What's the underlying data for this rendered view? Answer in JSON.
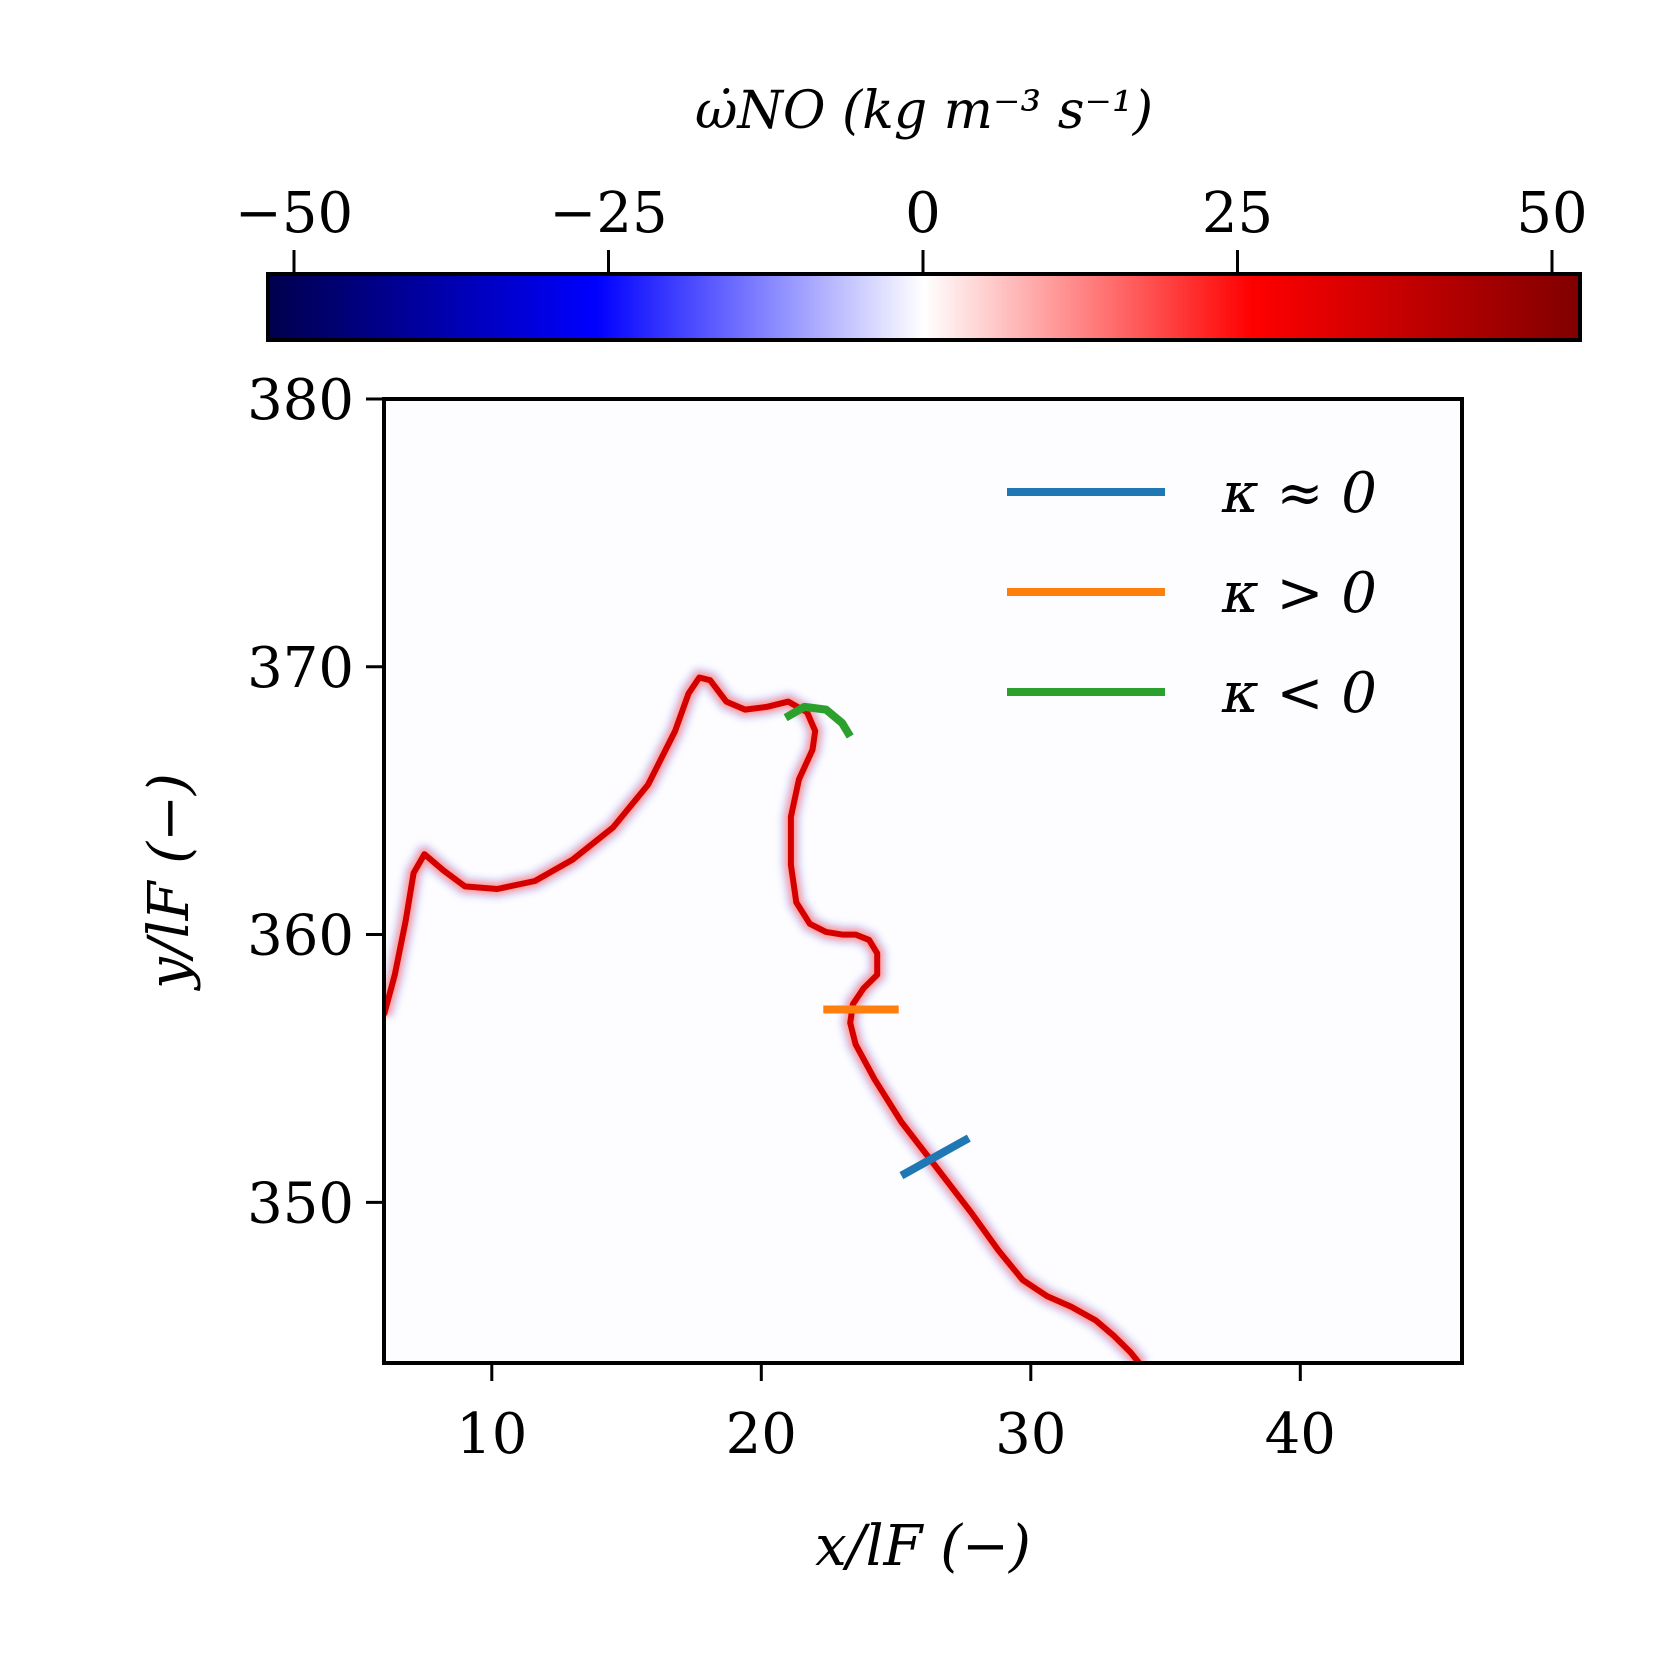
{
  "chart_data": {
    "type": "heatmap",
    "colorbar": {
      "label": "ω̇NO (kg m⁻³ s⁻¹)",
      "range": [
        -50,
        50
      ],
      "ticks": [
        -50,
        -25,
        0,
        25,
        50
      ],
      "tick_labels": [
        "−50",
        "−25",
        "0",
        "25",
        "50"
      ],
      "colormap": "seismic",
      "colors": [
        "#00004d",
        "#0000ff",
        "#ffffff",
        "#ff0000",
        "#800000"
      ]
    },
    "xlabel": "x/lF (−)",
    "ylabel": "y/lF (−)",
    "xlim": [
      6,
      46
    ],
    "ylim": [
      344,
      380
    ],
    "xticks": [
      10,
      20,
      30,
      40
    ],
    "yticks": [
      350,
      360,
      370,
      380
    ],
    "flame_front": {
      "x": [
        6,
        6.4,
        6.8,
        7.1,
        7.5,
        8.2,
        9.0,
        10.2,
        11.6,
        13.0,
        14.5,
        15.8,
        16.8,
        17.3,
        17.7,
        18.1,
        18.7,
        19.4,
        20.2,
        21.0,
        21.7,
        22.0,
        21.9,
        21.4,
        21.1,
        21.1,
        21.3,
        21.8,
        22.4,
        23.0,
        23.5,
        24.0,
        24.3,
        24.3,
        23.8,
        23.4,
        23.3,
        23.5,
        24.2,
        25.2,
        26.5,
        27.8,
        28.8,
        29.7,
        30.6,
        31.5,
        32.4,
        33.1,
        33.7,
        34.1
      ],
      "y": [
        357,
        358.5,
        360.5,
        362.3,
        363.0,
        362.4,
        361.8,
        361.7,
        362.0,
        362.8,
        364.0,
        365.6,
        367.6,
        369.0,
        369.6,
        369.5,
        368.7,
        368.4,
        368.5,
        368.7,
        368.3,
        367.6,
        366.9,
        365.8,
        364.4,
        362.6,
        361.2,
        360.4,
        360.1,
        360.0,
        360.0,
        359.8,
        359.3,
        358.5,
        358.0,
        357.4,
        356.7,
        355.9,
        354.6,
        353.0,
        351.3,
        349.6,
        348.2,
        347.1,
        346.5,
        346.1,
        345.6,
        345.0,
        344.4,
        343.9
      ]
    },
    "series": [
      {
        "name": "κ ≈ 0",
        "color": "#1f77b4",
        "x": [
          25.2,
          27.7
        ],
        "y": [
          351.0,
          352.4
        ]
      },
      {
        "name": "κ > 0",
        "color": "#ff7f0e",
        "x": [
          22.3,
          25.1
        ],
        "y": [
          357.2,
          357.2
        ]
      },
      {
        "name": "κ < 0",
        "color": "#2ca02c",
        "x": [
          20.9,
          21.6,
          22.4,
          23.0,
          23.3
        ],
        "y": [
          368.1,
          368.5,
          368.4,
          367.9,
          367.4
        ]
      }
    ],
    "legend_position": "top-right",
    "grid": false
  }
}
